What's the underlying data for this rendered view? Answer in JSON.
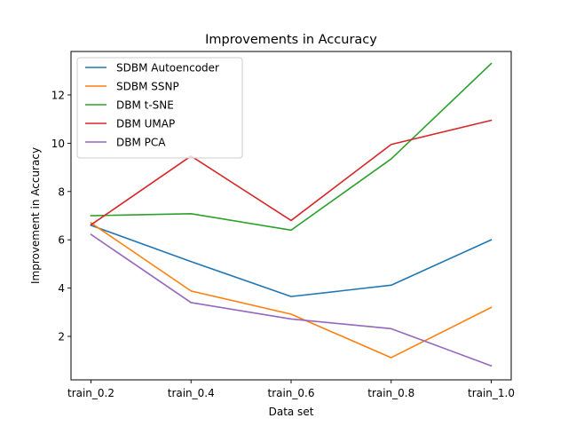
{
  "chart_data": {
    "type": "line",
    "title": "Improvements in Accuracy",
    "xlabel": "Data set",
    "ylabel": "Improvement in Accuracy",
    "categories": [
      "train_0.2",
      "train_0.4",
      "train_0.6",
      "train_0.8",
      "train_1.0"
    ],
    "ylim": [
      0.2,
      13.8
    ],
    "yticks": [
      2,
      4,
      6,
      8,
      10,
      12
    ],
    "grid": false,
    "legend": "top-left",
    "series": [
      {
        "name": "SDBM Autoencoder",
        "color": "#1f77b4",
        "values": [
          6.6,
          5.1,
          3.65,
          4.12,
          6.0
        ]
      },
      {
        "name": "SDBM SSNP",
        "color": "#ff7f0e",
        "values": [
          6.7,
          3.88,
          2.92,
          1.12,
          3.2
        ]
      },
      {
        "name": "DBM t-SNE",
        "color": "#2ca02c",
        "values": [
          7.0,
          7.08,
          6.4,
          9.35,
          13.3
        ]
      },
      {
        "name": "DBM UMAP",
        "color": "#d62728",
        "values": [
          6.62,
          9.47,
          6.8,
          9.95,
          10.95
        ]
      },
      {
        "name": "DBM PCA",
        "color": "#9467bd",
        "values": [
          6.22,
          3.4,
          2.72,
          2.32,
          0.78
        ]
      }
    ]
  }
}
